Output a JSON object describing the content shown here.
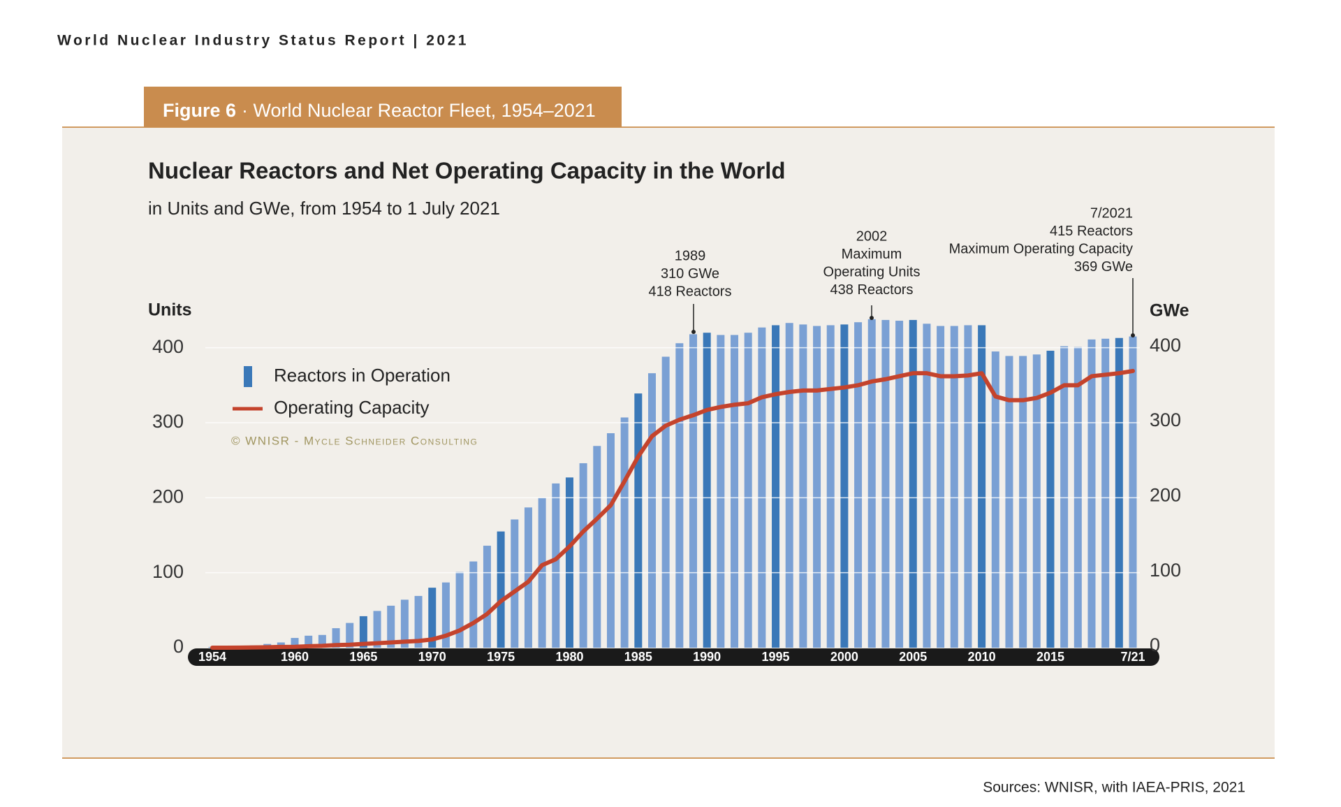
{
  "header": "World Nuclear Industry Status Report | 2021",
  "figure_label": "Figure 6",
  "figure_title": "· World Nuclear Reactor Fleet, 1954–2021",
  "sources": "Sources: WNISR, with IAEA-PRIS, 2021",
  "chart_data": {
    "type": "bar_line",
    "title": "Nuclear Reactors and Net Operating Capacity in the World",
    "subtitle": "in Units and GWe, from 1954 to 1 July 2021",
    "ylabel": "Units",
    "y2label": "GWe",
    "copyright": "© WNISR - Mycle Schneider Consulting",
    "categories": [
      "1954",
      null,
      null,
      null,
      null,
      null,
      "1960",
      null,
      null,
      null,
      null,
      "1965",
      null,
      null,
      null,
      null,
      "1970",
      null,
      null,
      null,
      null,
      "1975",
      null,
      null,
      null,
      null,
      "1980",
      null,
      null,
      null,
      null,
      "1985",
      null,
      null,
      null,
      null,
      "1990",
      null,
      null,
      null,
      null,
      "1995",
      null,
      null,
      null,
      null,
      "2000",
      null,
      null,
      null,
      null,
      "2005",
      null,
      null,
      null,
      null,
      "2010",
      null,
      null,
      null,
      null,
      "2015",
      null,
      null,
      null,
      null,
      null,
      "7/21"
    ],
    "ylim": [
      0,
      450
    ],
    "yticks": [
      0,
      100,
      200,
      300,
      400
    ],
    "y2lim": [
      0,
      450
    ],
    "y2ticks": [
      0,
      100,
      200,
      300,
      400
    ],
    "grid": true,
    "series": [
      {
        "name": "Reactors in Operation",
        "type": "bar",
        "color": "#7aa0d4",
        "colors": [
          "#7aa0d4",
          "#7aa0d4",
          "#7aa0d4",
          "#7aa0d4",
          "#7aa0d4",
          "#7aa0d4",
          "#7aa0d4",
          "#7aa0d4",
          "#7aa0d4",
          "#7aa0d4",
          "#7aa0d4",
          "#3a78b8",
          "#7aa0d4",
          "#7aa0d4",
          "#7aa0d4",
          "#7aa0d4",
          "#3a78b8",
          "#7aa0d4",
          "#7aa0d4",
          "#7aa0d4",
          "#7aa0d4",
          "#3a78b8",
          "#7aa0d4",
          "#7aa0d4",
          "#7aa0d4",
          "#7aa0d4",
          "#3a78b8",
          "#7aa0d4",
          "#7aa0d4",
          "#7aa0d4",
          "#7aa0d4",
          "#3a78b8",
          "#7aa0d4",
          "#7aa0d4",
          "#7aa0d4",
          "#7aa0d4",
          "#3a78b8",
          "#7aa0d4",
          "#7aa0d4",
          "#7aa0d4",
          "#7aa0d4",
          "#3a78b8",
          "#7aa0d4",
          "#7aa0d4",
          "#7aa0d4",
          "#7aa0d4",
          "#3a78b8",
          "#7aa0d4",
          "#7aa0d4",
          "#7aa0d4",
          "#7aa0d4",
          "#3a78b8",
          "#7aa0d4",
          "#7aa0d4",
          "#7aa0d4",
          "#7aa0d4",
          "#3a78b8",
          "#7aa0d4",
          "#7aa0d4",
          "#7aa0d4",
          "#7aa0d4",
          "#3a78b8",
          "#7aa0d4",
          "#7aa0d4",
          "#7aa0d4",
          "#7aa0d4",
          "#3a78b8",
          "#7aa0d4"
        ],
        "values": [
          1,
          1,
          2,
          3,
          5,
          7,
          13,
          16,
          17,
          26,
          33,
          42,
          49,
          56,
          64,
          69,
          80,
          87,
          101,
          115,
          136,
          155,
          171,
          187,
          200,
          219,
          227,
          246,
          269,
          286,
          307,
          339,
          366,
          388,
          406,
          418,
          420,
          417,
          417,
          420,
          427,
          430,
          433,
          431,
          429,
          430,
          431,
          434,
          438,
          437,
          436,
          437,
          432,
          429,
          429,
          430,
          430,
          395,
          389,
          389,
          391,
          396,
          402,
          401,
          411,
          412,
          413,
          415
        ]
      },
      {
        "name": "Operating Capacity",
        "type": "line",
        "axis": "y2",
        "color": "#c4432c",
        "values": [
          0,
          0,
          0.1,
          0.3,
          0.6,
          1,
          1.2,
          2,
          2.5,
          3.5,
          4,
          5,
          6,
          7,
          8,
          9,
          11,
          16,
          23,
          33,
          45,
          62,
          75,
          88,
          110,
          118,
          135,
          155,
          172,
          190,
          222,
          255,
          282,
          296,
          304,
          310,
          317,
          321,
          324,
          326,
          334,
          338,
          341,
          343,
          343,
          345,
          347,
          350,
          355,
          358,
          362,
          366,
          366,
          362,
          362,
          363,
          366,
          335,
          330,
          330,
          333,
          340,
          350,
          350,
          362,
          364,
          366,
          369
        ]
      }
    ],
    "annotations": [
      {
        "lines": [
          "1989",
          "310 GWe",
          "418 Reactors"
        ]
      },
      {
        "lines": [
          "2002",
          "Maximum",
          "Operating Units",
          "438 Reactors"
        ]
      },
      {
        "lines": [
          "7/2021",
          "415 Reactors",
          "Maximum Operating Capacity",
          "369 GWe"
        ]
      }
    ]
  }
}
